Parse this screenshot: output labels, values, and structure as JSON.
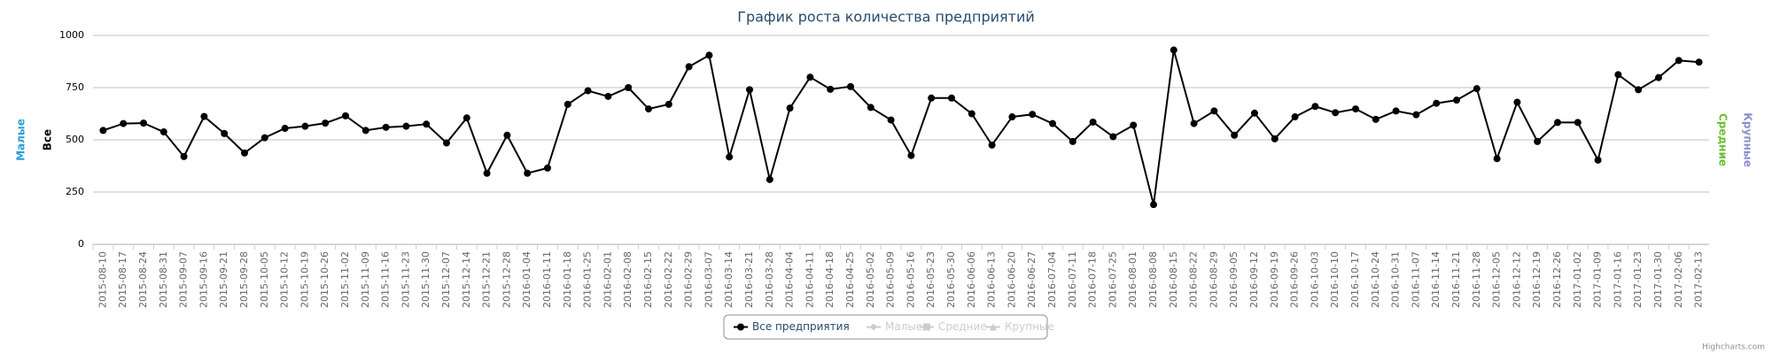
{
  "chart_data": {
    "type": "line",
    "title": "График роста количества предприятий",
    "credits": "Highcharts.com",
    "y_axis_titles": [
      {
        "text": "Малые",
        "color": "#2b9fd8"
      },
      {
        "text": "Все",
        "color": "#000000"
      },
      {
        "text": "Средние",
        "color": "#6abf2f"
      },
      {
        "text": "Крупные",
        "color": "#8a8fcf"
      }
    ],
    "categories": [
      "2015-08-10",
      "2015-08-17",
      "2015-08-24",
      "2015-08-31",
      "2015-09-07",
      "2015-09-16",
      "2015-09-21",
      "2015-09-28",
      "2015-10-05",
      "2015-10-12",
      "2015-10-19",
      "2015-10-26",
      "2015-11-02",
      "2015-11-09",
      "2015-11-16",
      "2015-11-23",
      "2015-11-30",
      "2015-12-07",
      "2015-12-14",
      "2015-12-21",
      "2015-12-28",
      "2016-01-04",
      "2016-01-11",
      "2016-01-18",
      "2016-01-25",
      "2016-02-01",
      "2016-02-08",
      "2016-02-15",
      "2016-02-22",
      "2016-02-29",
      "2016-03-07",
      "2016-03-14",
      "2016-03-21",
      "2016-03-28",
      "2016-04-04",
      "2016-04-11",
      "2016-04-18",
      "2016-04-25",
      "2016-05-02",
      "2016-05-09",
      "2016-05-16",
      "2016-05-23",
      "2016-05-30",
      "2016-06-06",
      "2016-06-13",
      "2016-06-20",
      "2016-06-27",
      "2016-07-04",
      "2016-07-11",
      "2016-07-18",
      "2016-07-25",
      "2016-08-01",
      "2016-08-08",
      "2016-08-15",
      "2016-08-22",
      "2016-08-29",
      "2016-09-05",
      "2016-09-12",
      "2016-09-19",
      "2016-09-26",
      "2016-10-03",
      "2016-10-10",
      "2016-10-17",
      "2016-10-24",
      "2016-10-31",
      "2016-11-07",
      "2016-11-14",
      "2016-11-21",
      "2016-11-28",
      "2016-12-05",
      "2016-12-12",
      "2016-12-19",
      "2016-12-26",
      "2017-01-02",
      "2017-01-09",
      "2017-01-16",
      "2017-01-23",
      "2017-01-30",
      "2017-02-06",
      "2017-02-13"
    ],
    "series": [
      {
        "name": "Все предприятия",
        "color": "#000000",
        "values": [
          545,
          578,
          580,
          538,
          420,
          612,
          530,
          437,
          510,
          555,
          565,
          580,
          615,
          545,
          560,
          565,
          575,
          485,
          605,
          340,
          522,
          340,
          365,
          670,
          735,
          708,
          750,
          648,
          670,
          850,
          905,
          418,
          740,
          310,
          652,
          800,
          742,
          755,
          655,
          595,
          425,
          700,
          700,
          625,
          475,
          610,
          622,
          578,
          492,
          585,
          515,
          570,
          190,
          930,
          578,
          638,
          522,
          628,
          505,
          610,
          660,
          630,
          648,
          598,
          638,
          620,
          675,
          690,
          745,
          410,
          680,
          492,
          583,
          583,
          403,
          812,
          740,
          798,
          880,
          872
        ]
      }
    ],
    "hidden_series": [
      {
        "name": "Малые",
        "color": "#cccccc"
      },
      {
        "name": "Средние",
        "color": "#cccccc"
      },
      {
        "name": "Крупные",
        "color": "#cccccc"
      }
    ],
    "ylim": [
      0,
      1000
    ],
    "yticks": [
      0,
      250,
      500,
      750,
      1000
    ],
    "grid": true
  }
}
